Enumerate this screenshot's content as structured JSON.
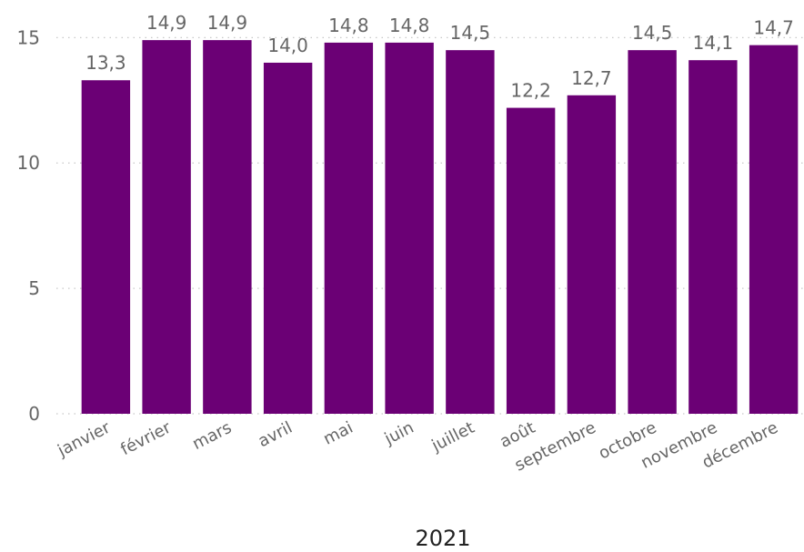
{
  "chart_data": {
    "type": "bar",
    "title": "",
    "xlabel": "2021",
    "ylabel": "",
    "categories": [
      "janvier",
      "février",
      "mars",
      "avril",
      "mai",
      "juin",
      "juillet",
      "août",
      "septembre",
      "octobre",
      "novembre",
      "décembre"
    ],
    "values": [
      13.3,
      14.9,
      14.9,
      14.0,
      14.8,
      14.8,
      14.5,
      12.2,
      12.7,
      14.5,
      14.1,
      14.7
    ],
    "data_labels": [
      "13,3",
      "14,9",
      "14,9",
      "14,0",
      "14,8",
      "14,8",
      "14,5",
      "12,2",
      "12,7",
      "14,5",
      "14,1",
      "14,7"
    ],
    "ylim": [
      0,
      16.5
    ],
    "yticks": [
      0,
      5,
      10,
      15
    ],
    "ytick_labels": [
      "0",
      "5",
      "10",
      "15"
    ],
    "grid": "horizontal dotted",
    "legend": "none",
    "bar_color": "#6B0075",
    "grid_color": "#C8C8C8"
  }
}
